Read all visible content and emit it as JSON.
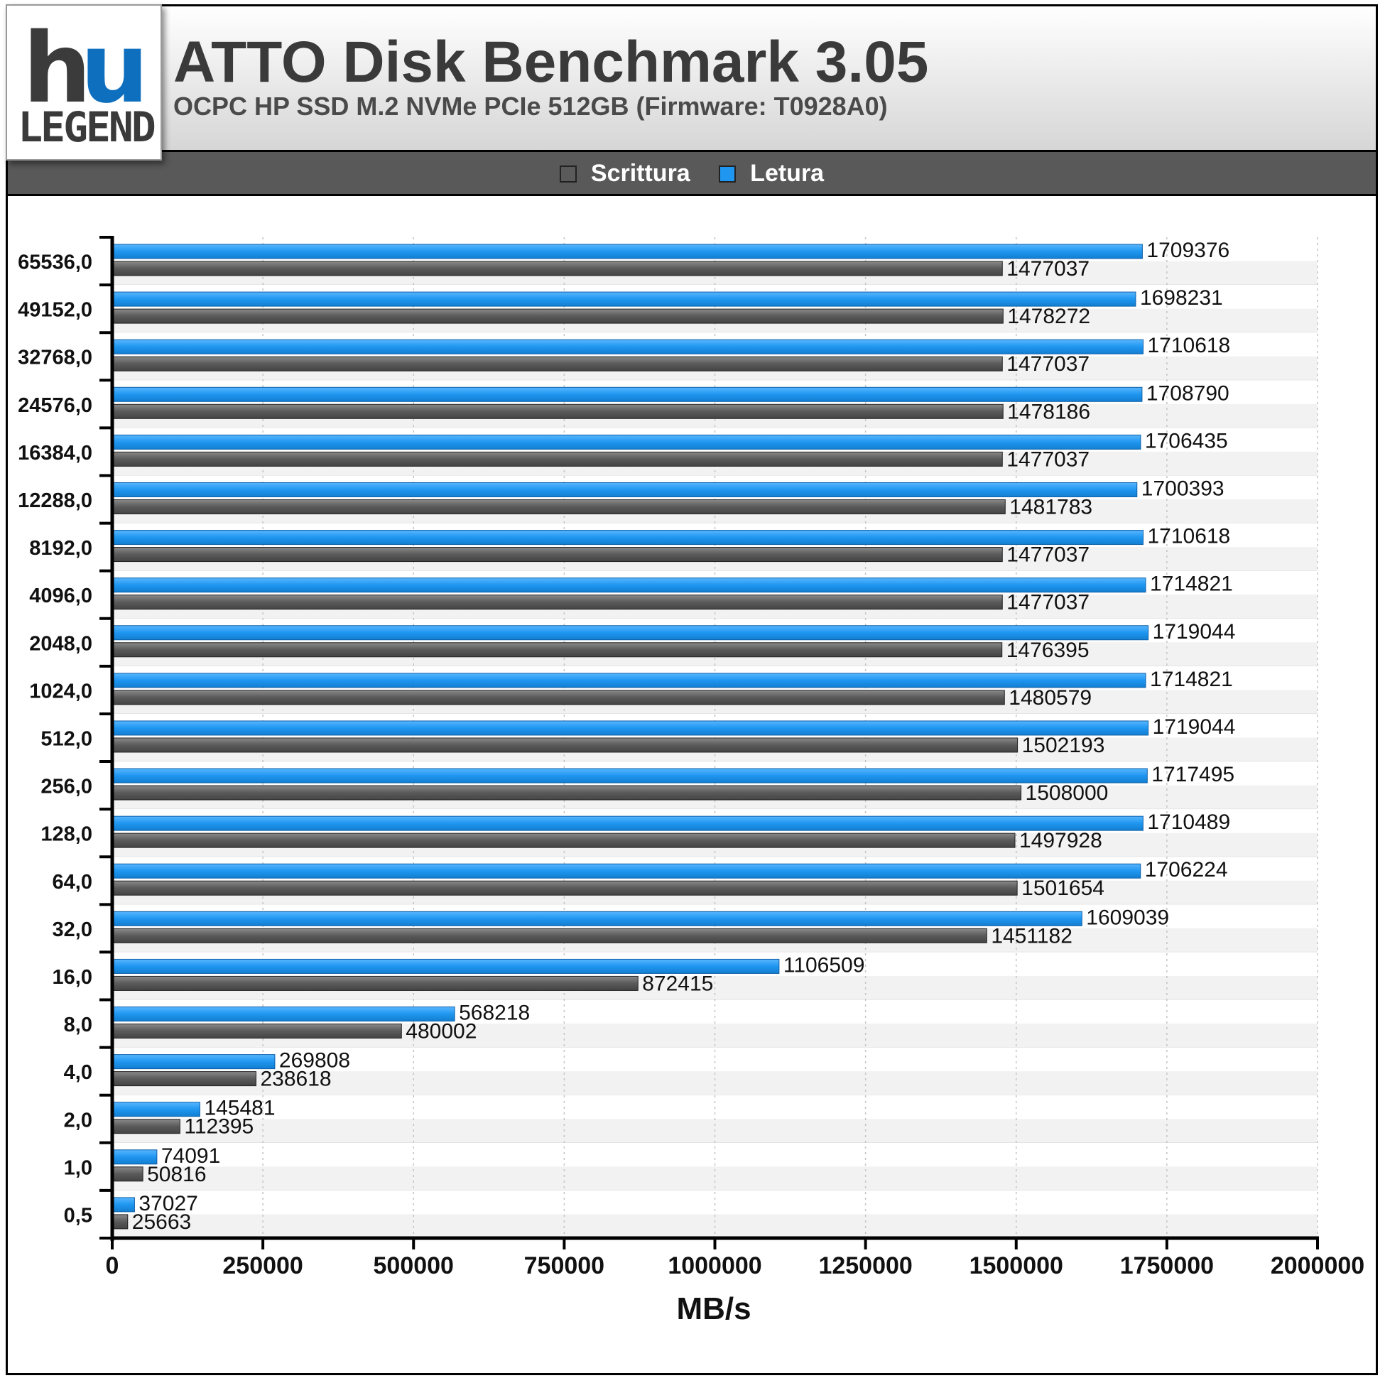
{
  "header": {
    "logo_text": "hu LEGEND",
    "title": "ATTO Disk Benchmark 3.05",
    "subtitle": "OCPC HP SSD M.2 NVMe PCIe 512GB (Firmware: T0928A0)"
  },
  "legend": {
    "items": [
      {
        "label": "Scrittura",
        "color": "#5a5a5a"
      },
      {
        "label": "Letura",
        "color": "#1f96f0"
      }
    ]
  },
  "chart_data": {
    "type": "bar",
    "orientation": "horizontal",
    "title": "ATTO Disk Benchmark 3.05",
    "subtitle": "OCPC HP SSD M.2 NVMe PCIe 512GB (Firmware: T0928A0)",
    "xlabel": "MB/s",
    "ylabel": "",
    "xlim": [
      0,
      2000000
    ],
    "x_ticks": [
      "0",
      "250000",
      "500000",
      "750000",
      "1000000",
      "1250000",
      "1500000",
      "1750000",
      "2000000"
    ],
    "grid": true,
    "legend_position": "top-center",
    "categories": [
      "65536,0",
      "49152,0",
      "32768,0",
      "24576,0",
      "16384,0",
      "12288,0",
      "8192,0",
      "4096,0",
      "2048,0",
      "1024,0",
      "512,0",
      "256,0",
      "128,0",
      "64,0",
      "32,0",
      "16,0",
      "8,0",
      "4,0",
      "2,0",
      "1,0",
      "0,5"
    ],
    "series": [
      {
        "name": "Letura",
        "color": "#1f96f0",
        "values": [
          1709376,
          1698231,
          1710618,
          1708790,
          1706435,
          1700393,
          1710618,
          1714821,
          1719044,
          1714821,
          1719044,
          1717495,
          1710489,
          1706224,
          1609039,
          1106509,
          568218,
          269808,
          145481,
          74091,
          37027
        ]
      },
      {
        "name": "Scrittura",
        "color": "#5a5a5a",
        "values": [
          1477037,
          1478272,
          1477037,
          1478186,
          1477037,
          1481783,
          1477037,
          1477037,
          1476395,
          1480579,
          1502193,
          1508000,
          1497928,
          1501654,
          1451182,
          872415,
          480002,
          238618,
          112395,
          50816,
          25663
        ]
      }
    ]
  }
}
